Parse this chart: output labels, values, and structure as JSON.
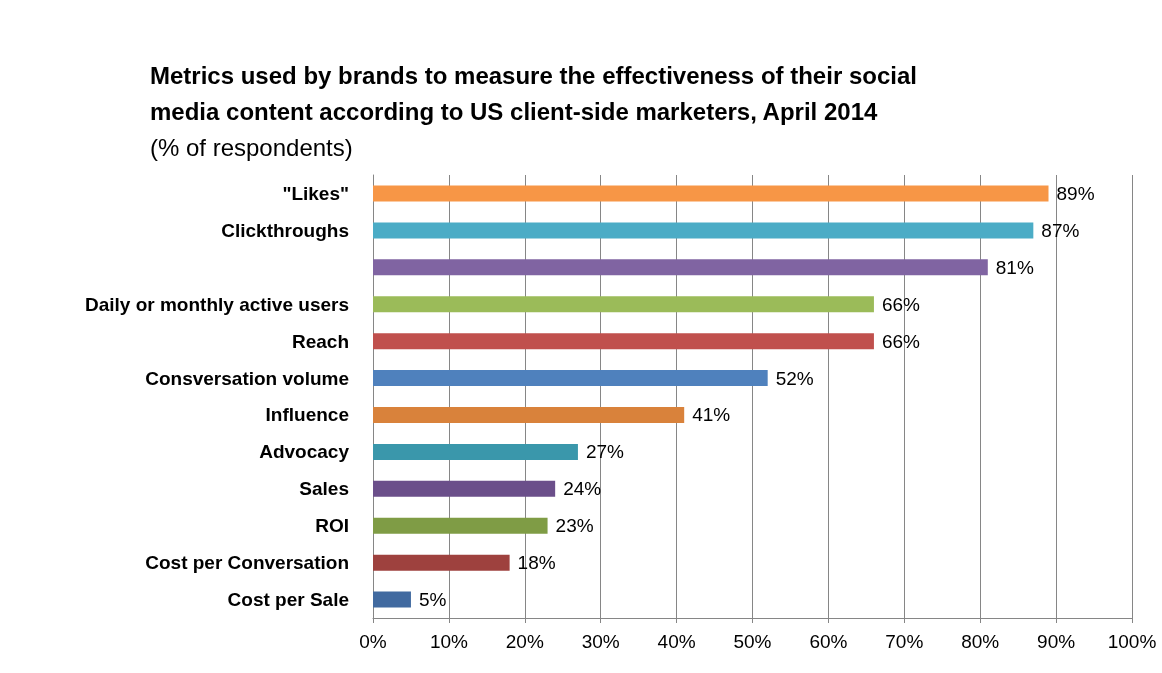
{
  "chart_data": {
    "type": "bar",
    "orientation": "horizontal",
    "title": "Metrics used by brands to measure the effectiveness of their social\nmedia content according to US client-side marketers, April 2014",
    "subtitle": "(% of respondents)",
    "categories": [
      "\"Likes\"",
      "Clickthroughs",
      null,
      "Daily or monthly active users",
      "Reach",
      "Consversation volume",
      "Influence",
      "Advocacy",
      "Sales",
      "ROI",
      "Cost per Conversation",
      "Cost per Sale"
    ],
    "values": [
      89,
      87,
      81,
      66,
      66,
      52,
      41,
      27,
      24,
      23,
      18,
      5
    ],
    "value_labels": [
      "89%",
      "87%",
      "81%",
      "66%",
      "66%",
      "52%",
      "41%",
      "27%",
      "24%",
      "23%",
      "18%",
      "5%"
    ],
    "colors": [
      "#f79646",
      "#4bacc6",
      "#8064a2",
      "#9bbb59",
      "#c0504d",
      "#4f81bd",
      "#d9823b",
      "#3a97ab",
      "#6b4f8a",
      "#7f9c45",
      "#9e413e",
      "#416aa0"
    ],
    "xlim": [
      0,
      100
    ],
    "xticks": [
      {
        "value": 0,
        "label": "0%"
      },
      {
        "value": 10,
        "label": "10%"
      },
      {
        "value": 20,
        "label": "20%"
      },
      {
        "value": 30,
        "label": "30%"
      },
      {
        "value": 40,
        "label": "40%"
      },
      {
        "value": 50,
        "label": "50%"
      },
      {
        "value": 60,
        "label": "60%"
      },
      {
        "value": 70,
        "label": "70%"
      },
      {
        "value": 80,
        "label": "80%"
      },
      {
        "value": 90,
        "label": "90%"
      },
      {
        "value": 100,
        "label": "100%"
      }
    ],
    "grid": "x"
  }
}
